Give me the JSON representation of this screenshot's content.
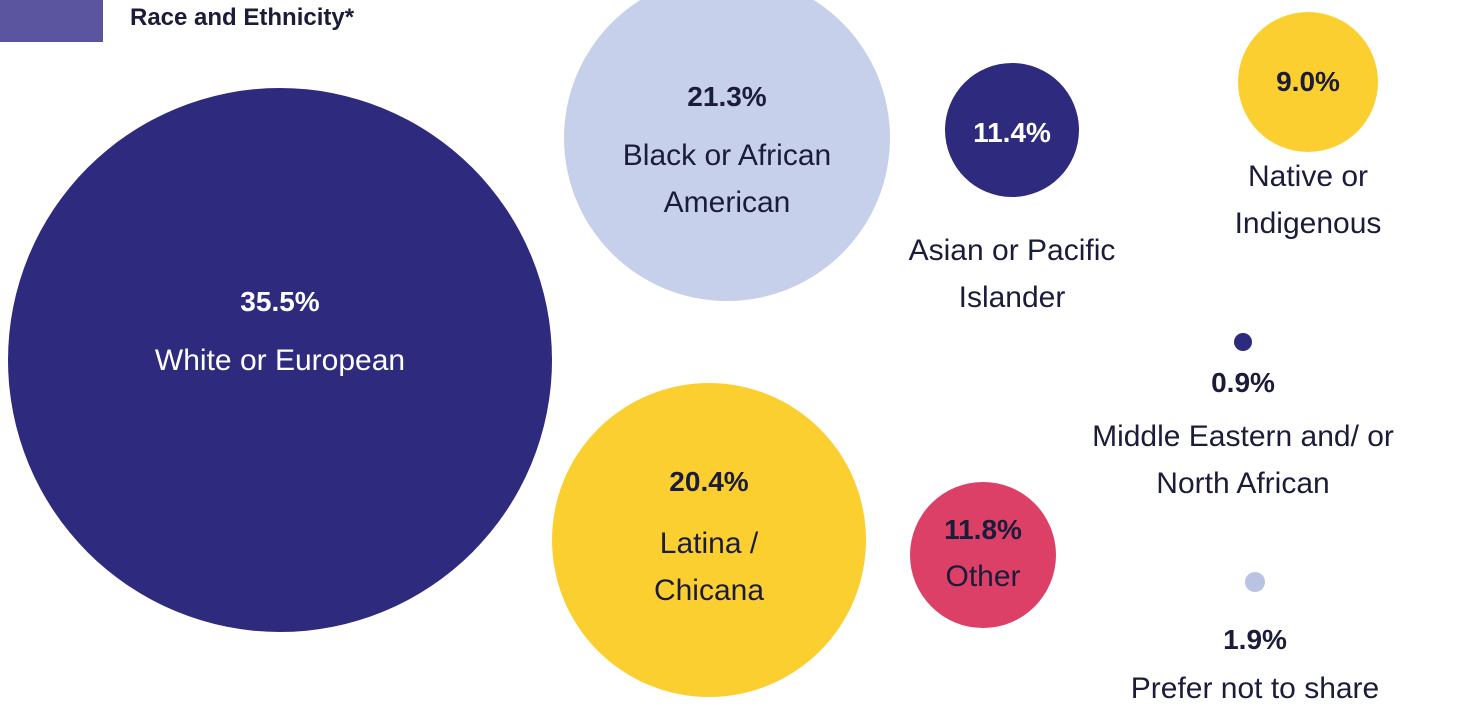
{
  "chart_data": {
    "type": "bubble",
    "title": "Race and Ethnicity*",
    "categories": [
      "White or European",
      "Black or African American",
      "Asian or Pacific Islander",
      "Native or Indigenous",
      "Middle Eastern and/ or North African",
      "Latina / Chicana",
      "Other",
      "Prefer not to share"
    ],
    "values": [
      35.5,
      21.3,
      11.4,
      9.0,
      0.9,
      20.4,
      11.8,
      1.9
    ],
    "value_labels": [
      "35.5%",
      "21.3%",
      "11.4%",
      "9.0%",
      "0.9%",
      "20.4%",
      "11.8%",
      "1.9%"
    ],
    "colors": [
      "#2e2a7e",
      "#c6d0ea",
      "#2e2a7e",
      "#fccf31",
      "#2e2a7e",
      "#fccf31",
      "#dc4067",
      "#b9c4e3"
    ]
  }
}
